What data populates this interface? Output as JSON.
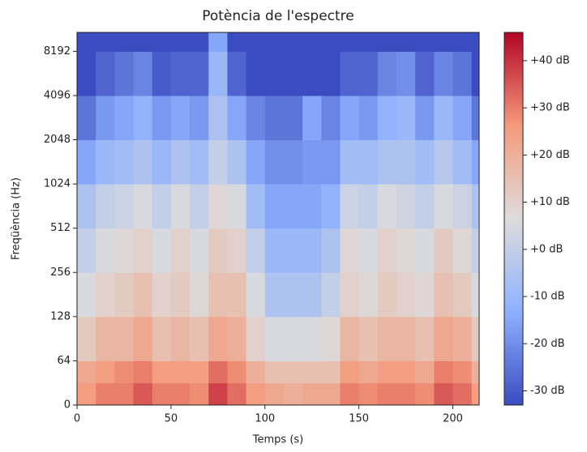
{
  "chart_data": {
    "type": "heatmap",
    "title": "Potència de l'espectre",
    "xlabel": "Temps (s)",
    "ylabel": "Freqüència (Hz)",
    "xlim": [
      0,
      214
    ],
    "xticks": [
      0,
      50,
      100,
      150,
      200
    ],
    "ylim": [
      0,
      11025
    ],
    "yscale": "symlog",
    "linthresh": 64,
    "yticks": [
      0,
      64,
      128,
      256,
      512,
      1024,
      2048,
      4096,
      8192
    ],
    "time_bins": [
      0,
      10,
      20,
      30,
      40,
      50,
      60,
      70,
      80,
      90,
      100,
      110,
      120,
      130,
      140,
      150,
      160,
      170,
      180,
      190,
      200,
      210,
      214
    ],
    "freq_bins": [
      0,
      32,
      64,
      128,
      256,
      512,
      1024,
      2048,
      4096,
      8192,
      11025
    ],
    "values": [
      [
        25,
        22,
        12,
        5,
        0,
        -5,
        -15,
        -25,
        -33,
        -33
      ],
      [
        30,
        25,
        18,
        10,
        5,
        0,
        -10,
        -18,
        -28,
        -33
      ],
      [
        30,
        28,
        18,
        12,
        8,
        2,
        -8,
        -15,
        -25,
        -33
      ],
      [
        35,
        30,
        22,
        15,
        10,
        5,
        -5,
        -12,
        -22,
        -33
      ],
      [
        30,
        25,
        15,
        10,
        5,
        0,
        -10,
        -18,
        -30,
        -33
      ],
      [
        30,
        25,
        18,
        12,
        10,
        5,
        -5,
        -15,
        -28,
        -33
      ],
      [
        28,
        25,
        15,
        8,
        5,
        0,
        -8,
        -18,
        -28,
        -33
      ],
      [
        38,
        32,
        22,
        15,
        12,
        8,
        0,
        -5,
        -10,
        -15
      ],
      [
        32,
        28,
        20,
        15,
        10,
        5,
        -5,
        -15,
        -28,
        -33
      ],
      [
        25,
        20,
        10,
        5,
        0,
        -8,
        -15,
        -22,
        -33,
        -33
      ],
      [
        22,
        15,
        5,
        -5,
        -10,
        -15,
        -20,
        -25,
        -33,
        -33
      ],
      [
        20,
        15,
        5,
        -5,
        -10,
        -15,
        -20,
        -25,
        -33,
        -33
      ],
      [
        22,
        15,
        5,
        -5,
        -10,
        -15,
        -18,
        -15,
        -33,
        -33
      ],
      [
        22,
        15,
        8,
        0,
        -5,
        -12,
        -18,
        -22,
        -33,
        -33
      ],
      [
        30,
        25,
        18,
        10,
        8,
        2,
        -8,
        -15,
        -28,
        -33
      ],
      [
        28,
        22,
        15,
        8,
        5,
        0,
        -8,
        -18,
        -28,
        -33
      ],
      [
        30,
        25,
        18,
        12,
        10,
        5,
        -5,
        -12,
        -22,
        -33
      ],
      [
        30,
        25,
        18,
        10,
        8,
        3,
        -5,
        -10,
        -20,
        -33
      ],
      [
        28,
        22,
        15,
        8,
        5,
        0,
        -8,
        -18,
        -28,
        -33
      ],
      [
        35,
        30,
        22,
        15,
        12,
        5,
        -3,
        -10,
        -22,
        -33
      ],
      [
        32,
        28,
        20,
        12,
        8,
        2,
        -8,
        -15,
        -25,
        -33
      ],
      [
        25,
        20,
        12,
        5,
        0,
        -5,
        -15,
        -25,
        -33,
        -33
      ]
    ],
    "clim": [
      -33,
      46
    ],
    "colormap": [
      "#3b4cc0",
      "#8db0fe",
      "#dddcdc",
      "#f49a7b",
      "#b40426"
    ],
    "cticks": [
      {
        "value": 40,
        "label": "+40 dB"
      },
      {
        "value": 30,
        "label": "+30 dB"
      },
      {
        "value": 20,
        "label": "+20 dB"
      },
      {
        "value": 10,
        "label": "+10 dB"
      },
      {
        "value": 0,
        "label": "+0 dB"
      },
      {
        "value": -10,
        "label": "-10 dB"
      },
      {
        "value": -20,
        "label": "-20 dB"
      },
      {
        "value": -30,
        "label": "-30 dB"
      }
    ]
  }
}
